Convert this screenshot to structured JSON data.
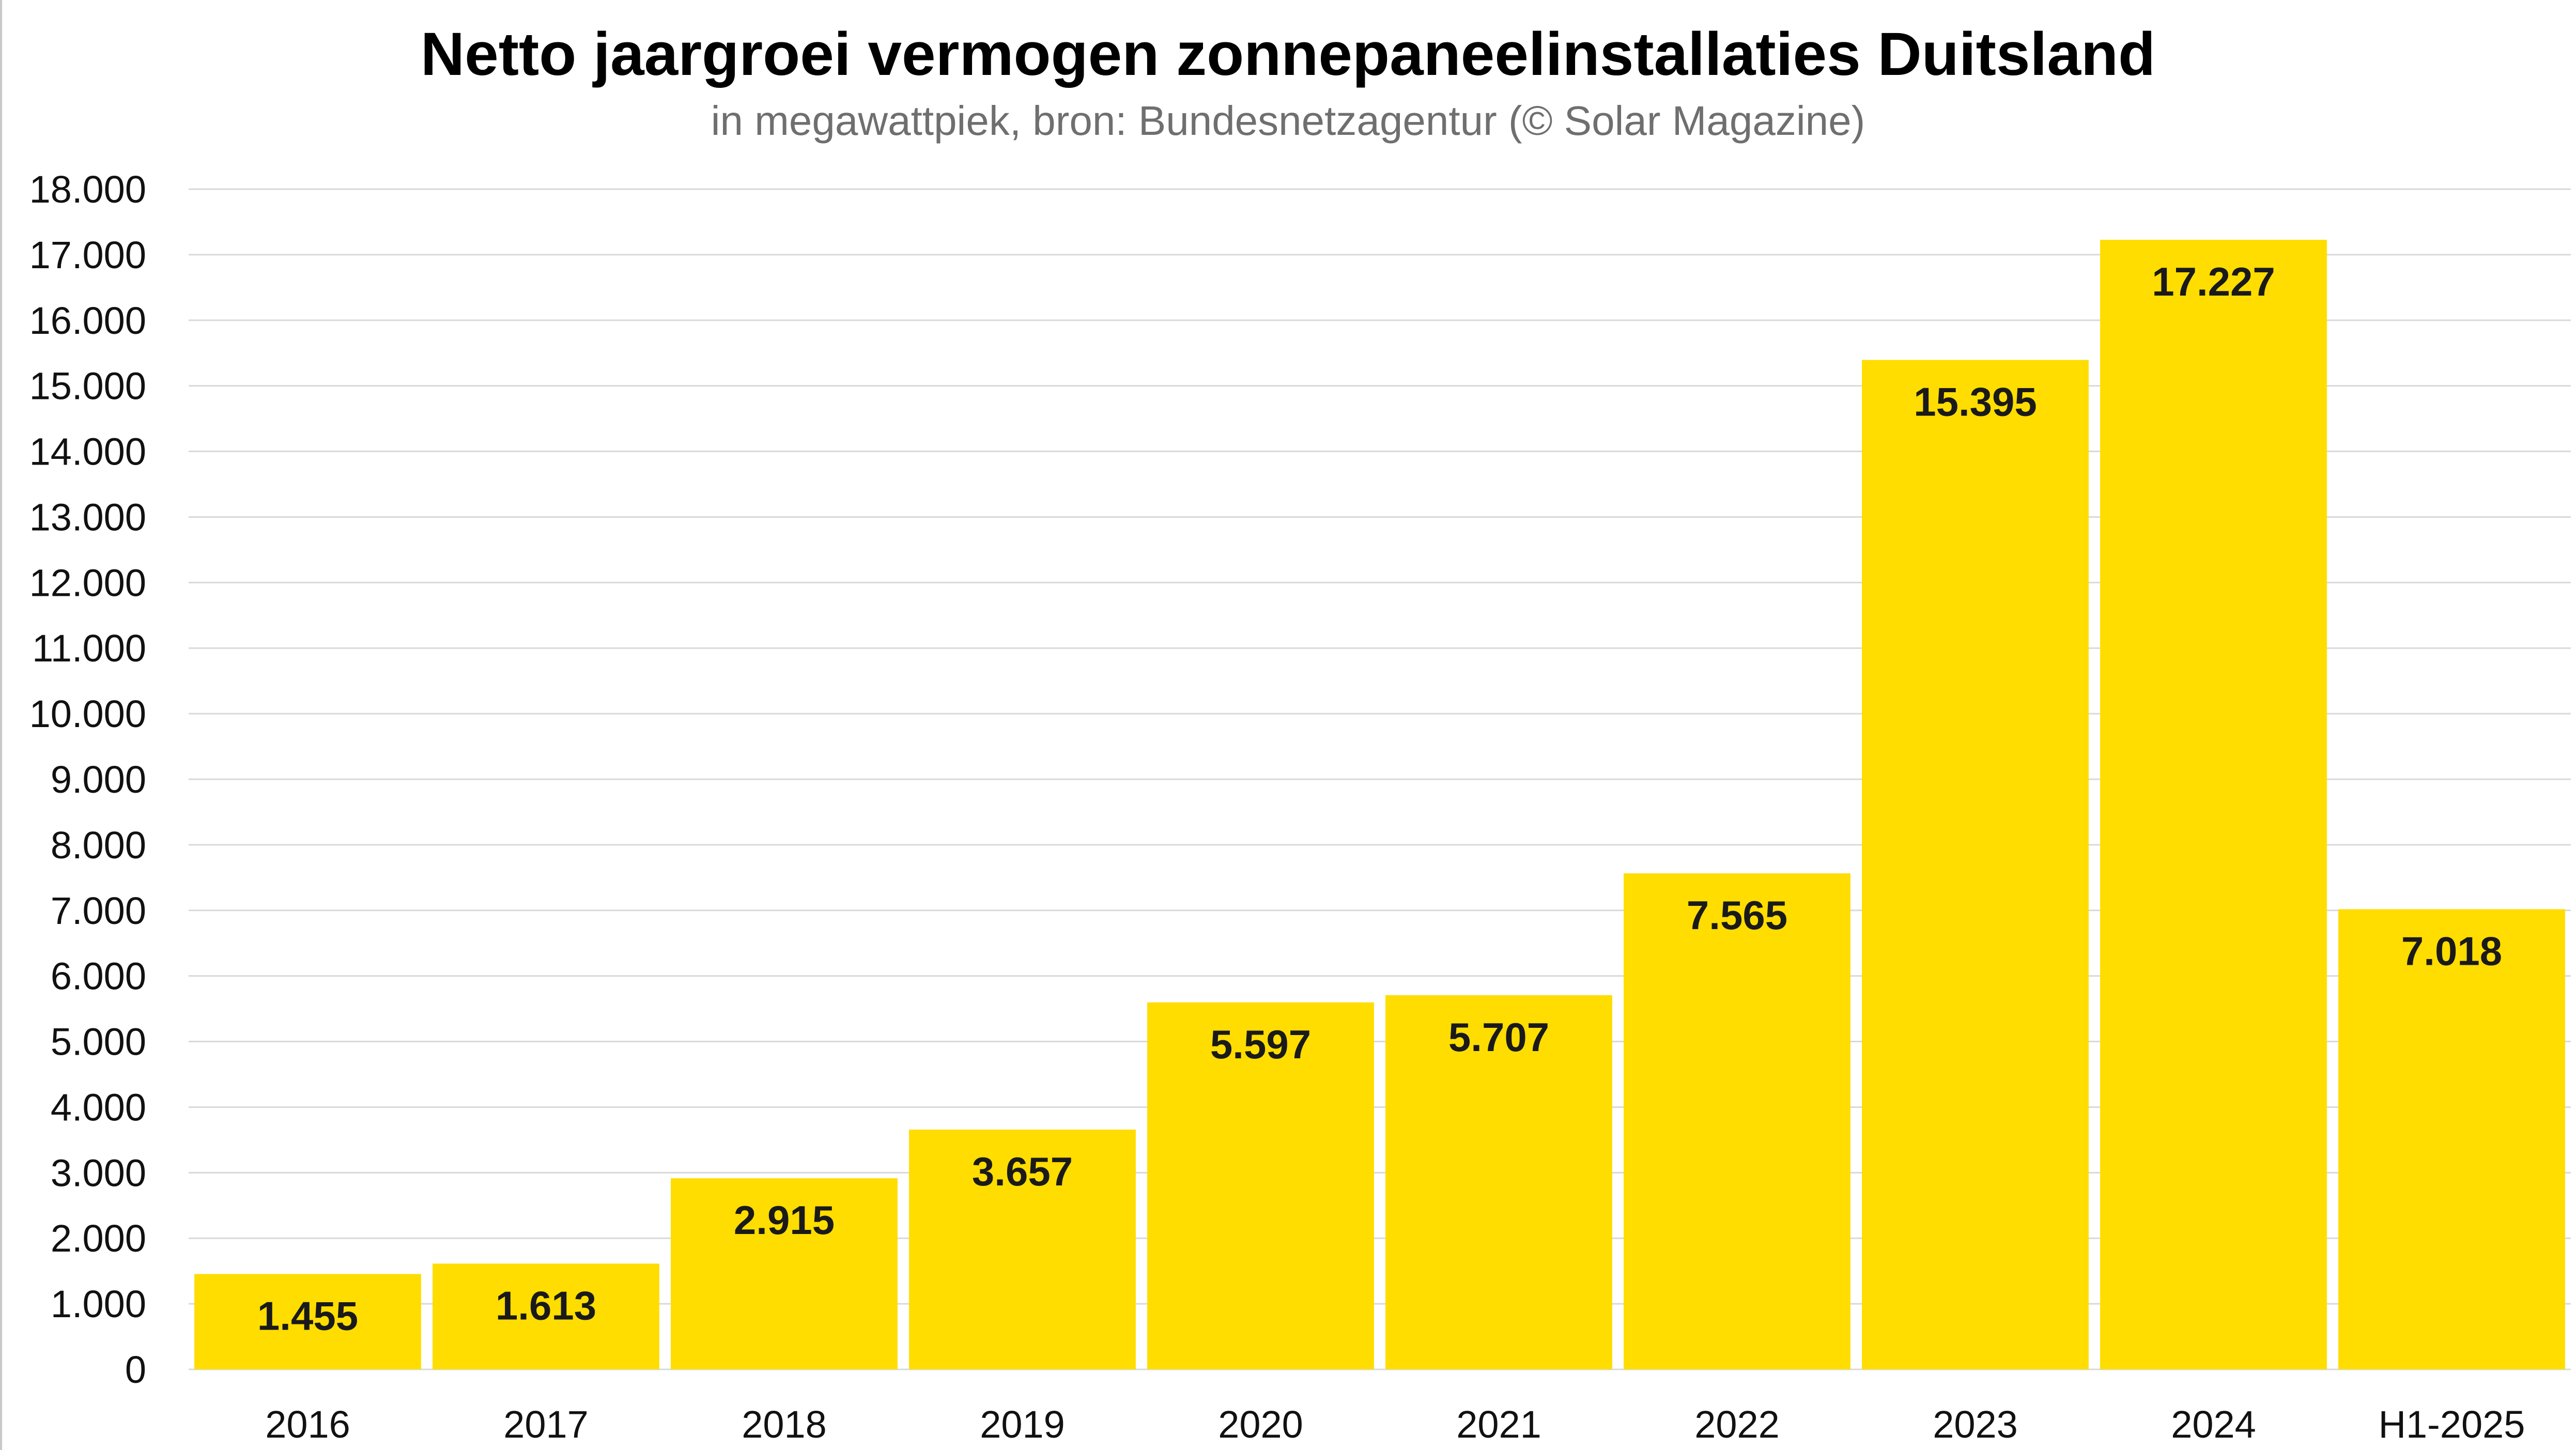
{
  "chart_data": {
    "type": "bar",
    "title": "Netto jaargroei vermogen zonnepaneelinstallaties Duitsland",
    "subtitle": "in megawattpiek, bron: Bundesnetzagentur (© Solar Magazine)",
    "categories": [
      "2016",
      "2017",
      "2018",
      "2019",
      "2020",
      "2021",
      "2022",
      "2023",
      "2024",
      "H1-2025"
    ],
    "values": [
      1455,
      1613,
      2915,
      3657,
      5597,
      5707,
      7565,
      15395,
      17227,
      7018
    ],
    "value_labels": [
      "1.455",
      "1.613",
      "2.915",
      "3.657",
      "5.597",
      "5.707",
      "7.565",
      "15.395",
      "17.227",
      "7.018"
    ],
    "ylim": [
      0,
      18000
    ],
    "yticks": [
      0,
      1000,
      2000,
      3000,
      4000,
      5000,
      6000,
      7000,
      8000,
      9000,
      10000,
      11000,
      12000,
      13000,
      14000,
      15000,
      16000,
      17000,
      18000
    ],
    "ytick_labels": [
      "0",
      "1.000",
      "2.000",
      "3.000",
      "4.000",
      "5.000",
      "6.000",
      "7.000",
      "8.000",
      "9.000",
      "10.000",
      "11.000",
      "12.000",
      "13.000",
      "14.000",
      "15.000",
      "16.000",
      "17.000",
      "18.000"
    ],
    "xlabel": "",
    "ylabel": "",
    "grid": true,
    "bar_color": "#FFDD00",
    "grid_color": "#d9d9d9"
  }
}
